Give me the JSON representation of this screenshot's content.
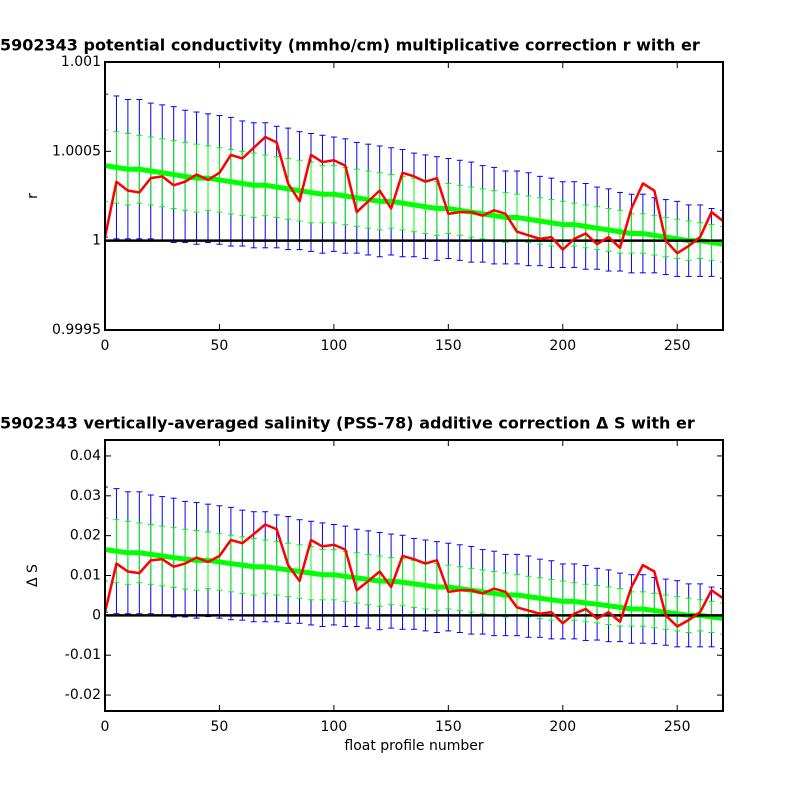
{
  "chart_data": [
    {
      "type": "line",
      "title": "5902343 potential conductivity (mmho/cm) multiplicative correction r with er",
      "ylabel": "r",
      "xlim": [
        0,
        270
      ],
      "xticks": [
        0,
        50,
        100,
        150,
        200,
        250
      ],
      "ylim": [
        0.9995,
        1.001
      ],
      "yticks": [
        0.9995,
        1,
        1.0005,
        1.001
      ],
      "reference_line": 1,
      "reference_color": "#000000",
      "x": [
        0,
        5,
        10,
        15,
        20,
        25,
        30,
        35,
        40,
        45,
        50,
        55,
        60,
        65,
        70,
        75,
        80,
        85,
        90,
        95,
        100,
        105,
        110,
        115,
        120,
        125,
        130,
        135,
        140,
        145,
        150,
        155,
        160,
        165,
        170,
        175,
        180,
        185,
        190,
        195,
        200,
        205,
        210,
        215,
        220,
        225,
        230,
        235,
        240,
        245,
        250,
        255,
        260,
        265,
        270
      ],
      "series": [
        {
          "color": "#0000ff",
          "values": [
            1.00042,
            1.00041,
            1.0004,
            1.0004,
            1.00039,
            1.00038,
            1.00037,
            1.00036,
            1.00035,
            1.00035,
            1.00034,
            1.00033,
            1.00032,
            1.00031,
            1.00031,
            1.0003,
            1.00029,
            1.00028,
            1.00027,
            1.00026,
            1.00026,
            1.00025,
            1.00024,
            1.00023,
            1.00022,
            1.00022,
            1.00021,
            1.0002,
            1.00019,
            1.00018,
            1.00018,
            1.00017,
            1.00016,
            1.00015,
            1.00014,
            1.00013,
            1.00013,
            1.00012,
            1.00011,
            1.0001,
            1.00009,
            1.00009,
            1.00008,
            1.00007,
            1.00006,
            1.00005,
            1.00004,
            1.00004,
            1.00003,
            1.00002,
            1.00001,
            1,
            1,
            0.99999,
            0.99998
          ],
          "errors": [
            0.0004,
            0.0004,
            0.00039,
            0.00039,
            0.00038,
            0.00038,
            0.00038,
            0.00037,
            0.00037,
            0.00036,
            0.00036,
            0.00036,
            0.00035,
            0.00035,
            0.00035,
            0.00034,
            0.00034,
            0.00033,
            0.00033,
            0.00033,
            0.00032,
            0.00032,
            0.00031,
            0.00031,
            0.00031,
            0.0003,
            0.0003,
            0.00029,
            0.00029,
            0.00029,
            0.00028,
            0.00028,
            0.00028,
            0.00027,
            0.00027,
            0.00026,
            0.00026,
            0.00026,
            0.00025,
            0.00025,
            0.00024,
            0.00024,
            0.00024,
            0.00023,
            0.00023,
            0.00022,
            0.00022,
            0.00022,
            0.00021,
            0.00021,
            0.00021,
            0.0002,
            0.0002,
            0.00019,
            0.00019
          ]
        },
        {
          "color": "#00ff00",
          "center_line": true,
          "values": [
            1.00042,
            1.00041,
            1.0004,
            1.0004,
            1.00039,
            1.00038,
            1.00037,
            1.00036,
            1.00035,
            1.00035,
            1.00034,
            1.00033,
            1.00032,
            1.00031,
            1.00031,
            1.0003,
            1.00029,
            1.00028,
            1.00027,
            1.00026,
            1.00026,
            1.00025,
            1.00024,
            1.00023,
            1.00022,
            1.00022,
            1.00021,
            1.0002,
            1.00019,
            1.00018,
            1.00018,
            1.00017,
            1.00016,
            1.00015,
            1.00014,
            1.00013,
            1.00013,
            1.00012,
            1.00011,
            1.0001,
            1.00009,
            1.00009,
            1.00008,
            1.00007,
            1.00006,
            1.00005,
            1.00004,
            1.00004,
            1.00003,
            1.00002,
            1.00001,
            1,
            1,
            0.99999,
            0.99998
          ],
          "errors": [
            0.0002,
            0.0002,
            0.0002,
            0.00019,
            0.00019,
            0.00019,
            0.00019,
            0.00019,
            0.00019,
            0.00018,
            0.00018,
            0.00018,
            0.00018,
            0.00018,
            0.00017,
            0.00017,
            0.00017,
            0.00017,
            0.00017,
            0.00016,
            0.00016,
            0.00016,
            0.00016,
            0.00016,
            0.00016,
            0.00015,
            0.00015,
            0.00015,
            0.00015,
            0.00015,
            0.00014,
            0.00014,
            0.00014,
            0.00014,
            0.00014,
            0.00014,
            0.00013,
            0.00013,
            0.00013,
            0.00013,
            0.00013,
            0.00012,
            0.00012,
            0.00012,
            0.00012,
            0.00012,
            0.00011,
            0.00011,
            0.00011,
            0.00011,
            0.00011,
            0.00011,
            0.0001,
            0.0001,
            0.0001
          ]
        },
        {
          "color": "#ff0000",
          "values": [
            1.00002,
            1.00033,
            1.00028,
            1.00027,
            1.00035,
            1.00036,
            1.00031,
            1.00033,
            1.00037,
            1.00034,
            1.00038,
            1.00048,
            1.00046,
            1.00052,
            1.00058,
            1.00055,
            1.00032,
            1.00022,
            1.00048,
            1.00044,
            1.00045,
            1.00042,
            1.00016,
            1.00022,
            1.00028,
            1.00018,
            1.00038,
            1.00036,
            1.00033,
            1.00035,
            1.00015,
            1.00016,
            1.00016,
            1.00014,
            1.00017,
            1.00015,
            1.00005,
            1.00003,
            1.00001,
            1.00002,
            0.99995,
            1.00001,
            1.00004,
            0.99998,
            1.00002,
            0.99996,
            1.00018,
            1.00032,
            1.00028,
            1,
            0.99993,
            0.99997,
            1.00002,
            1.00016,
            1.00011
          ]
        }
      ]
    },
    {
      "type": "line",
      "title": "5902343 vertically-averaged salinity (PSS-78) additive correction Δ S with er",
      "ylabel": "Δ S",
      "xlabel": "float profile number",
      "xlim": [
        0,
        270
      ],
      "xticks": [
        0,
        50,
        100,
        150,
        200,
        250
      ],
      "ylim": [
        -0.024,
        0.044
      ],
      "yticks": [
        -0.02,
        -0.01,
        0,
        0.01,
        0.02,
        0.03,
        0.04
      ],
      "reference_line": 0,
      "reference_color": "#000000",
      "x": [
        0,
        5,
        10,
        15,
        20,
        25,
        30,
        35,
        40,
        45,
        50,
        55,
        60,
        65,
        70,
        75,
        80,
        85,
        90,
        95,
        100,
        105,
        110,
        115,
        120,
        125,
        130,
        135,
        140,
        145,
        150,
        155,
        160,
        165,
        170,
        175,
        180,
        185,
        190,
        195,
        200,
        205,
        210,
        215,
        220,
        225,
        230,
        235,
        240,
        245,
        250,
        255,
        260,
        265,
        270
      ],
      "series": [
        {
          "color": "#0000ff",
          "values": [
            0.0165,
            0.0161,
            0.0157,
            0.0157,
            0.0153,
            0.0149,
            0.0145,
            0.0141,
            0.0138,
            0.0138,
            0.0134,
            0.013,
            0.0126,
            0.0122,
            0.0122,
            0.0118,
            0.0114,
            0.011,
            0.0106,
            0.0102,
            0.0102,
            0.0098,
            0.0094,
            0.009,
            0.0086,
            0.0086,
            0.0083,
            0.0079,
            0.0075,
            0.0071,
            0.0071,
            0.0067,
            0.0063,
            0.0059,
            0.0055,
            0.0051,
            0.0051,
            0.0047,
            0.0043,
            0.0039,
            0.0035,
            0.0035,
            0.0031,
            0.0028,
            0.0024,
            0.002,
            0.0016,
            0.0016,
            0.0012,
            0.0008,
            0.0004,
            0,
            0,
            -0.0004,
            -0.0008
          ],
          "errors": [
            0.0157,
            0.0157,
            0.0153,
            0.0153,
            0.0149,
            0.0149,
            0.0149,
            0.0145,
            0.0145,
            0.0141,
            0.0141,
            0.0141,
            0.0138,
            0.0138,
            0.0138,
            0.0134,
            0.0134,
            0.013,
            0.013,
            0.013,
            0.0126,
            0.0126,
            0.0122,
            0.0122,
            0.0122,
            0.0118,
            0.0118,
            0.0114,
            0.0114,
            0.0114,
            0.011,
            0.011,
            0.011,
            0.0106,
            0.0106,
            0.0102,
            0.0102,
            0.0102,
            0.0098,
            0.0098,
            0.0094,
            0.0094,
            0.0094,
            0.009,
            0.009,
            0.0086,
            0.0086,
            0.0086,
            0.0083,
            0.0083,
            0.0083,
            0.0079,
            0.0079,
            0.0075,
            0.0075
          ]
        },
        {
          "color": "#00ff00",
          "center_line": true,
          "values": [
            0.0165,
            0.0161,
            0.0157,
            0.0157,
            0.0153,
            0.0149,
            0.0145,
            0.0141,
            0.0138,
            0.0138,
            0.0134,
            0.013,
            0.0126,
            0.0122,
            0.0122,
            0.0118,
            0.0114,
            0.011,
            0.0106,
            0.0102,
            0.0102,
            0.0098,
            0.0094,
            0.009,
            0.0086,
            0.0086,
            0.0083,
            0.0079,
            0.0075,
            0.0071,
            0.0071,
            0.0067,
            0.0063,
            0.0059,
            0.0055,
            0.0051,
            0.0051,
            0.0047,
            0.0043,
            0.0039,
            0.0035,
            0.0035,
            0.0031,
            0.0028,
            0.0024,
            0.002,
            0.0016,
            0.0016,
            0.0012,
            0.0008,
            0.0004,
            0,
            0,
            -0.0004,
            -0.0008
          ],
          "errors": [
            0.0079,
            0.0079,
            0.0079,
            0.0075,
            0.0075,
            0.0075,
            0.0075,
            0.0075,
            0.0075,
            0.0071,
            0.0071,
            0.0071,
            0.0071,
            0.0071,
            0.0067,
            0.0067,
            0.0067,
            0.0067,
            0.0067,
            0.0063,
            0.0063,
            0.0063,
            0.0063,
            0.0063,
            0.0063,
            0.0059,
            0.0059,
            0.0059,
            0.0059,
            0.0059,
            0.0055,
            0.0055,
            0.0055,
            0.0055,
            0.0055,
            0.0055,
            0.0051,
            0.0051,
            0.0051,
            0.0051,
            0.0051,
            0.0047,
            0.0047,
            0.0047,
            0.0047,
            0.0047,
            0.0043,
            0.0043,
            0.0043,
            0.0043,
            0.0043,
            0.0043,
            0.0039,
            0.0039,
            0.0039
          ]
        },
        {
          "color": "#ff0000",
          "values": [
            0.0008,
            0.013,
            0.011,
            0.0106,
            0.0138,
            0.0141,
            0.0122,
            0.013,
            0.0145,
            0.0134,
            0.0149,
            0.0189,
            0.0181,
            0.0204,
            0.0228,
            0.0216,
            0.0126,
            0.0086,
            0.0189,
            0.0173,
            0.0177,
            0.0165,
            0.0063,
            0.0086,
            0.011,
            0.0071,
            0.0149,
            0.0141,
            0.013,
            0.0138,
            0.0059,
            0.0063,
            0.0063,
            0.0055,
            0.0067,
            0.0059,
            0.002,
            0.0012,
            0.0004,
            0.0008,
            -0.002,
            0.0004,
            0.0016,
            -0.0008,
            0.0008,
            -0.0016,
            0.0071,
            0.0126,
            0.011,
            0,
            -0.0028,
            -0.0012,
            0.0008,
            0.0063,
            0.0043
          ]
        }
      ]
    }
  ]
}
